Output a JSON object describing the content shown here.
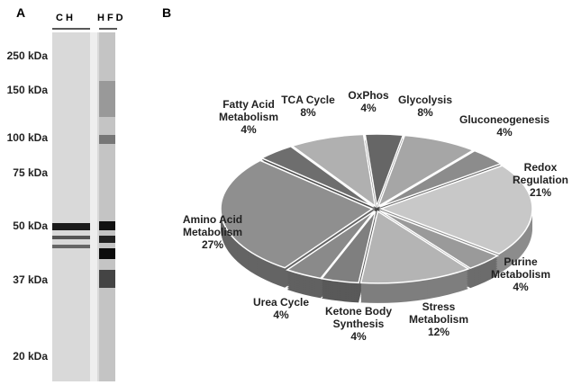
{
  "panel_a": {
    "label": "A",
    "lanes": [
      "CH",
      "HFD"
    ],
    "markers": [
      "250 kDa",
      "150 kDa",
      "100 kDa",
      "75 kDa",
      "50 kDa",
      "37 kDa",
      "20 kDa"
    ]
  },
  "chart_data": {
    "type": "pie",
    "panel_label": "B",
    "categories": [
      "Glycolysis",
      "Gluconeogenesis",
      "Redox\nRegulation",
      "Purine\nMetabolism",
      "Stress\nMetabolism",
      "Ketone Body\nSynthesis",
      "Urea Cycle",
      "Amino Acid\nMetabolism",
      "Fatty Acid\nMetabolism",
      "TCA Cycle",
      "OxPhos"
    ],
    "values": [
      8,
      4,
      21,
      4,
      12,
      4,
      4,
      27,
      4,
      8,
      4
    ],
    "value_labels": [
      "8%",
      "4%",
      "21%",
      "4%",
      "12%",
      "4%",
      "4%",
      "27%",
      "4%",
      "8%",
      "4%"
    ],
    "colors": [
      "#a6a6a6",
      "#8c8c8c",
      "#c8c8c8",
      "#9a9a9a",
      "#b4b4b4",
      "#7f7f7f",
      "#8a8a8a",
      "#8f8f8f",
      "#6e6e6e",
      "#b0b0b0",
      "#666666"
    ]
  }
}
